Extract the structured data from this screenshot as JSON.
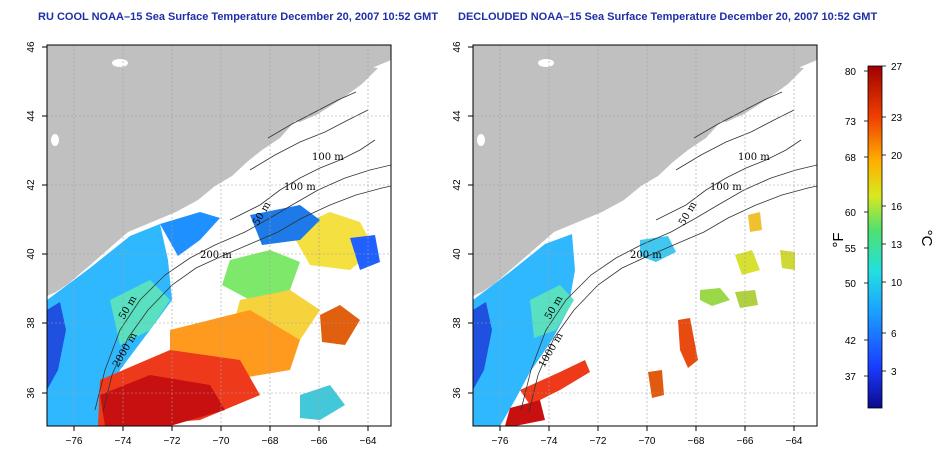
{
  "panels": [
    {
      "title": "RU COOL NOAA–15 Sea Surface Temperature December 20, 2007 10:52 GMT",
      "contour_labels": [
        "100 m",
        "100 m",
        "50 m",
        "200 m",
        "50 m",
        "2000 m"
      ]
    },
    {
      "title": "DECLOUDED NOAA–15 Sea Surface Temperature December 20, 2007 10:52 GMT",
      "contour_labels": [
        "100 m",
        "100 m",
        "50 m",
        "200 m",
        "50 m",
        "1000 m"
      ]
    }
  ],
  "axes": {
    "lon_ticks": [
      "−76",
      "−74",
      "−72",
      "−70",
      "−68",
      "−66",
      "−64"
    ],
    "lat_ticks": [
      "36",
      "38",
      "40",
      "42",
      "44",
      "46"
    ]
  },
  "colorbar": {
    "fahrenheit_label": "°F",
    "celsius_label": "°C",
    "fahrenheit_ticks": [
      "80",
      "73",
      "68",
      "60",
      "55",
      "50",
      "42",
      "37"
    ],
    "celsius_ticks": [
      "27",
      "23",
      "20",
      "16",
      "13",
      "10",
      "6",
      "3"
    ],
    "celsius_range": [
      0,
      27
    ]
  },
  "colors": {
    "land": "#c0c0c0",
    "title": "#1f2fa8",
    "cold": "#1010a0",
    "warm": "#d01010"
  }
}
